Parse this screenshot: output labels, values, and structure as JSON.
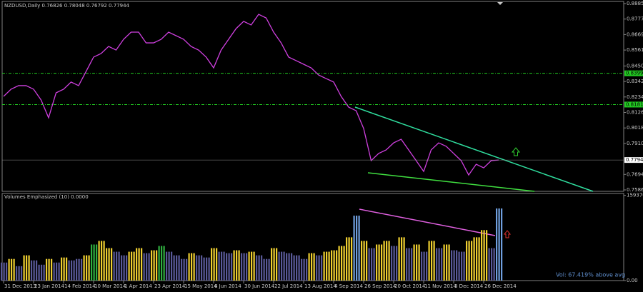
{
  "chart_data": [
    {
      "type": "line",
      "title": "NZDUSD,Daily  0.76826 0.78048 0.76792 0.77944",
      "categories": [
        "31 Dec 2013",
        null,
        null,
        null,
        "23 Jan 2014",
        null,
        null,
        null,
        "14 Feb 2014",
        null,
        null,
        null,
        "10 Mar 2014",
        null,
        null,
        null,
        "1 Apr 2014",
        null,
        null,
        null,
        "23 Apr 2014",
        null,
        null,
        null,
        "15 May 2014",
        null,
        null,
        null,
        "6 Jun 2014",
        null,
        null,
        null,
        "30 Jun 2014",
        null,
        null,
        null,
        "22 Jul 2014",
        null,
        null,
        null,
        "13 Aug 2014",
        null,
        null,
        null,
        "4 Sep 2014",
        null,
        null,
        null,
        "26 Sep 2014",
        null,
        null,
        null,
        "20 Oct 2014",
        null,
        null,
        null,
        "11 Nov 2014",
        null,
        null,
        null,
        "3 Dec 2014",
        null,
        null,
        null,
        "26 Dec 2014",
        null,
        null
      ],
      "series": [
        {
          "name": "NZDUSD",
          "color": "#d040e0",
          "values": [
            0.8238,
            0.8288,
            0.8313,
            0.8313,
            0.8288,
            0.8213,
            0.8089,
            0.8263,
            0.8288,
            0.8338,
            0.8313,
            0.8412,
            0.8512,
            0.8537,
            0.8586,
            0.8561,
            0.8636,
            0.8686,
            0.8686,
            0.8611,
            0.8611,
            0.8636,
            0.8686,
            0.8661,
            0.8636,
            0.8586,
            0.8561,
            0.8512,
            0.8437,
            0.8561,
            0.8636,
            0.8711,
            0.8761,
            0.8736,
            0.881,
            0.8785,
            0.8686,
            0.8611,
            0.8512,
            0.8487,
            0.8462,
            0.8437,
            0.8387,
            0.8362,
            0.8338,
            0.8238,
            0.8163,
            0.8138,
            0.8014,
            0.779,
            0.784,
            0.7865,
            0.7914,
            0.7939,
            0.7865,
            0.779,
            0.7715,
            0.7865,
            0.7914,
            0.789,
            0.784,
            0.779,
            0.769,
            0.7765,
            0.774,
            0.779,
            0.77944
          ]
        }
      ],
      "ylim": [
        0.7576,
        0.89
      ],
      "yticks": [
        {
          "value": 0.8885,
          "label": "0.88850"
        },
        {
          "value": 0.8777,
          "label": "0.87770"
        },
        {
          "value": 0.8669,
          "label": "0.86690"
        },
        {
          "value": 0.8561,
          "label": "0.85610"
        },
        {
          "value": 0.845,
          "label": "0.84500"
        },
        {
          "value": 0.8342,
          "label": "0.83420"
        },
        {
          "value": 0.8234,
          "label": "0.82340"
        },
        {
          "value": 0.8126,
          "label": "0.81260"
        },
        {
          "value": 0.8018,
          "label": "0.80180"
        },
        {
          "value": 0.791,
          "label": "0.79100"
        },
        {
          "value": 0.7694,
          "label": "0.76940"
        },
        {
          "value": 0.7586,
          "label": "0.75860"
        }
      ],
      "levels": [
        {
          "value": 0.8399,
          "label": "0.83990",
          "color": "#22cc22"
        },
        {
          "value": 0.8181,
          "label": "0.81810",
          "color": "#22cc22"
        }
      ],
      "current": {
        "value": 0.77944,
        "label": "0.77944"
      }
    },
    {
      "type": "bar",
      "title": "Volumes Emphasized (10)  0.0000",
      "annotation": "Vol:  67.419% above avg",
      "values": [
        33750,
        40500,
        27000,
        47250,
        37800,
        29700,
        40500,
        33750,
        43200,
        37800,
        40500,
        47250,
        67500,
        74250,
        60750,
        54000,
        47250,
        54000,
        60750,
        51300,
        56700,
        64800,
        54000,
        47250,
        40500,
        51300,
        47250,
        43200,
        60750,
        54000,
        51300,
        56700,
        51300,
        54000,
        47250,
        40500,
        60750,
        54000,
        51300,
        47250,
        40500,
        51300,
        47250,
        54000,
        56700,
        64800,
        81000,
        121500,
        74250,
        60750,
        67500,
        74250,
        64800,
        81000,
        60750,
        67500,
        54000,
        74250,
        60750,
        67500,
        56700,
        54000,
        74250,
        81000,
        94500,
        60750,
        135000
      ],
      "colors": [
        "#5a5a9a",
        "#f0d030",
        "#5a5a9a",
        "#f0d030",
        "#5a5a9a",
        "#5a5a9a",
        "#f0d030",
        "#5a5a9a",
        "#f0d030",
        "#5a5a9a",
        "#5a5a9a",
        "#f0d030",
        "#30b040",
        "#f0d030",
        "#f0d030",
        "#5a5a9a",
        "#5a5a9a",
        "#f0d030",
        "#f0d030",
        "#5a5a9a",
        "#f0d030",
        "#30b040",
        "#5a5a9a",
        "#5a5a9a",
        "#5a5a9a",
        "#f0d030",
        "#5a5a9a",
        "#5a5a9a",
        "#f0d030",
        "#5a5a9a",
        "#5a5a9a",
        "#f0d030",
        "#5a5a9a",
        "#f0d030",
        "#5a5a9a",
        "#5a5a9a",
        "#f0d030",
        "#5a5a9a",
        "#5a5a9a",
        "#5a5a9a",
        "#5a5a9a",
        "#f0d030",
        "#5a5a9a",
        "#f0d030",
        "#f0d030",
        "#f0d030",
        "#f0d030",
        "#70a0e0",
        "#f0d030",
        "#5a5a9a",
        "#f0d030",
        "#f0d030",
        "#5a5a9a",
        "#f0d030",
        "#5a5a9a",
        "#f0d030",
        "#5a5a9a",
        "#f0d030",
        "#5a5a9a",
        "#f0d030",
        "#5a5a9a",
        "#5a5a9a",
        "#f0d030",
        "#f0d030",
        "#f0d030",
        "#5a5a9a",
        "#70a0e0"
      ],
      "ylim": [
        0,
        163000
      ],
      "yticks": [
        159370,
        {
          "value": 0,
          "label": "0.00"
        }
      ]
    }
  ]
}
